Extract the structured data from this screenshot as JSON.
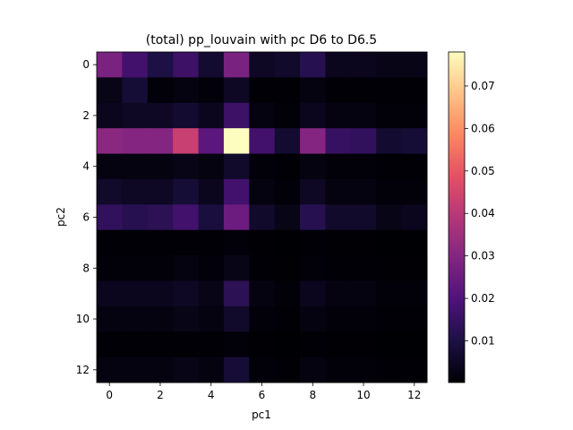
{
  "chart_data": {
    "type": "heatmap",
    "title": "(total) pp_louvain with pc D6 to D6.5",
    "xlabel": "pc1",
    "ylabel": "pc2",
    "x_ticks": [
      "0",
      "2",
      "4",
      "6",
      "8",
      "10",
      "12"
    ],
    "y_ticks": [
      "0",
      "2",
      "4",
      "6",
      "8",
      "10",
      "12"
    ],
    "colorbar_ticks": [
      "0.01",
      "0.02",
      "0.03",
      "0.04",
      "0.05",
      "0.06",
      "0.07"
    ],
    "colormap": "magma",
    "vmin": 0.0002,
    "vmax": 0.078,
    "grid": false,
    "x": [
      0,
      1,
      2,
      3,
      4,
      5,
      6,
      7,
      8,
      9,
      10,
      11,
      12
    ],
    "y": [
      0,
      1,
      2,
      3,
      4,
      5,
      6,
      7,
      8,
      9,
      10,
      11,
      12
    ],
    "values": [
      [
        0.028,
        0.017,
        0.01,
        0.016,
        0.007,
        0.028,
        0.005,
        0.006,
        0.012,
        0.004,
        0.004,
        0.003,
        0.003
      ],
      [
        0.003,
        0.008,
        0.001,
        0.002,
        0.001,
        0.005,
        0.0005,
        0.0005,
        0.002,
        0.0005,
        0.0005,
        0.0005,
        0.0005
      ],
      [
        0.004,
        0.005,
        0.005,
        0.007,
        0.004,
        0.016,
        0.002,
        0.001,
        0.004,
        0.002,
        0.002,
        0.001,
        0.001
      ],
      [
        0.031,
        0.03,
        0.03,
        0.043,
        0.022,
        0.078,
        0.017,
        0.007,
        0.03,
        0.015,
        0.014,
        0.007,
        0.008
      ],
      [
        0.002,
        0.002,
        0.002,
        0.003,
        0.002,
        0.006,
        0.001,
        0.0005,
        0.002,
        0.001,
        0.001,
        0.0005,
        0.0005
      ],
      [
        0.006,
        0.005,
        0.005,
        0.008,
        0.004,
        0.017,
        0.002,
        0.001,
        0.005,
        0.002,
        0.002,
        0.001,
        0.001
      ],
      [
        0.014,
        0.012,
        0.013,
        0.017,
        0.009,
        0.025,
        0.006,
        0.003,
        0.012,
        0.006,
        0.006,
        0.003,
        0.004
      ],
      [
        0.0005,
        0.0005,
        0.0005,
        0.0005,
        0.0005,
        0.001,
        0.0003,
        0.0002,
        0.0005,
        0.0003,
        0.0003,
        0.0002,
        0.0002
      ],
      [
        0.001,
        0.001,
        0.001,
        0.002,
        0.001,
        0.003,
        0.0005,
        0.0003,
        0.001,
        0.0005,
        0.0005,
        0.0003,
        0.0003
      ],
      [
        0.004,
        0.004,
        0.004,
        0.005,
        0.003,
        0.013,
        0.002,
        0.001,
        0.004,
        0.002,
        0.002,
        0.001,
        0.001
      ],
      [
        0.002,
        0.002,
        0.002,
        0.003,
        0.002,
        0.006,
        0.001,
        0.0005,
        0.002,
        0.001,
        0.001,
        0.0005,
        0.0005
      ],
      [
        0.0005,
        0.0005,
        0.0005,
        0.0005,
        0.0005,
        0.001,
        0.0003,
        0.0002,
        0.0005,
        0.0003,
        0.0003,
        0.0002,
        0.0002
      ],
      [
        0.002,
        0.002,
        0.002,
        0.003,
        0.002,
        0.008,
        0.001,
        0.0005,
        0.002,
        0.001,
        0.001,
        0.0005,
        0.0005
      ]
    ]
  }
}
